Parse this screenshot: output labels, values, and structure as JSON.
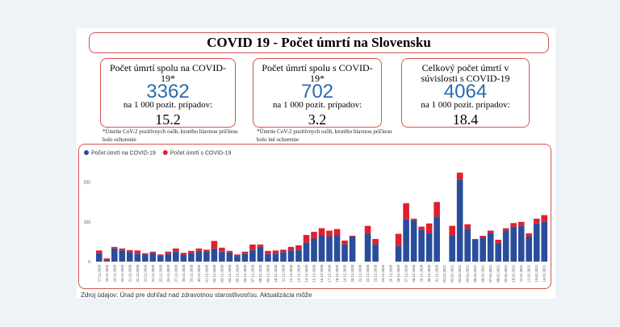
{
  "header": {
    "title": "COVID 19 - Počet úmrtí na Slovensku"
  },
  "kpis": [
    {
      "label": "Počet úmrtí spolu na COVID-19*",
      "value": 3362,
      "per_label": "na 1 000 pozit. prípadov:",
      "per_value": 15.2,
      "note": "*Úmrtie CoV-2 pozitívnych osôb, ktorého hlavnou príčinou bolo ochorenie"
    },
    {
      "label": "Počet úmrtí spolu s COVID-19*",
      "value": 702,
      "per_label": "na 1 000 pozit. prípadov:",
      "per_value": 3.2,
      "note": "*Úmrtie CoV-2 pozitívnych osôb, ktorého hlavnou príčinou bolo iné ochorenie"
    },
    {
      "label": "Celkový počet úmrtí v súvislosti s COVID-19",
      "value": 4064,
      "per_label": "na 1 000 pozit. prípadov:",
      "per_value": 18.4
    }
  ],
  "chart_data": {
    "type": "bar",
    "stacked": true,
    "categories": [
      "17.11.2020",
      "18.11.2020",
      "19.11.2020",
      "20.11.2020",
      "21.11.2020",
      "22.11.2020",
      "23.11.2020",
      "24.11.2020",
      "25.11.2020",
      "26.11.2020",
      "27.11.2020",
      "28.11.2020",
      "29.11.2020",
      "30.11.2020",
      "01.12.2020",
      "02.12.2020",
      "03.12.2020",
      "04.12.2020",
      "05.12.2020",
      "06.12.2020",
      "07.12.2020",
      "08.12.2020",
      "09.12.2020",
      "10.12.2020",
      "11.12.2020",
      "12.12.2020",
      "13.12.2020",
      "14.12.2020",
      "15.12.2020",
      "16.12.2020",
      "17.12.2020",
      "18.12.2020",
      "19.12.2020",
      "20.12.2020",
      "21.12.2020",
      "22.12.2020",
      "23.12.2020",
      "24.12.2020",
      "25.12.2020",
      "26.12.2020",
      "27.12.2020",
      "28.12.2020",
      "29.12.2020",
      "30.12.2020",
      "31.12.2020",
      "01.01.2021",
      "02.01.2021",
      "03.01.2021",
      "04.01.2021",
      "05.01.2021",
      "06.01.2021",
      "07.01.2021",
      "08.01.2021",
      "09.01.2021",
      "10.01.2021",
      "11.01.2021",
      "12.01.2021",
      "13.01.2021",
      "14.01.2021"
    ],
    "series": [
      {
        "name": "Počet úmrtí na COVID-19",
        "color": "#2a4d9b",
        "values": [
          22,
          3,
          33,
          28,
          24,
          20,
          18,
          22,
          16,
          19,
          25,
          17,
          22,
          27,
          26,
          33,
          25,
          23,
          14,
          20,
          29,
          37,
          19,
          20,
          24,
          28,
          30,
          48,
          58,
          67,
          63,
          67,
          43,
          63,
          0,
          70,
          44,
          0,
          0,
          40,
          106,
          104,
          80,
          72,
          113,
          0,
          66,
          206,
          83,
          55,
          60,
          72,
          47,
          78,
          88,
          90,
          63,
          96,
          100
        ]
      },
      {
        "name": "Počet úmrtí s COVID-19",
        "color": "#e0202e",
        "values": [
          6,
          5,
          4,
          5,
          5,
          8,
          3,
          3,
          2,
          6,
          8,
          5,
          5,
          6,
          4,
          19,
          10,
          4,
          4,
          5,
          14,
          6,
          8,
          8,
          6,
          9,
          11,
          19,
          17,
          17,
          15,
          15,
          10,
          2,
          0,
          20,
          13,
          0,
          0,
          30,
          41,
          4,
          8,
          24,
          37,
          0,
          24,
          18,
          11,
          2,
          5,
          6,
          8,
          6,
          9,
          10,
          8,
          12,
          17
        ]
      }
    ],
    "ylim": [
      0,
      250
    ],
    "yticks": [
      0,
      100,
      200
    ],
    "grid": false,
    "legend": "top-left"
  },
  "source": "Zdroj údajov: Úrad pre dohľad nad zdravotnou starostlivosťou.  Aktualizácia môže"
}
